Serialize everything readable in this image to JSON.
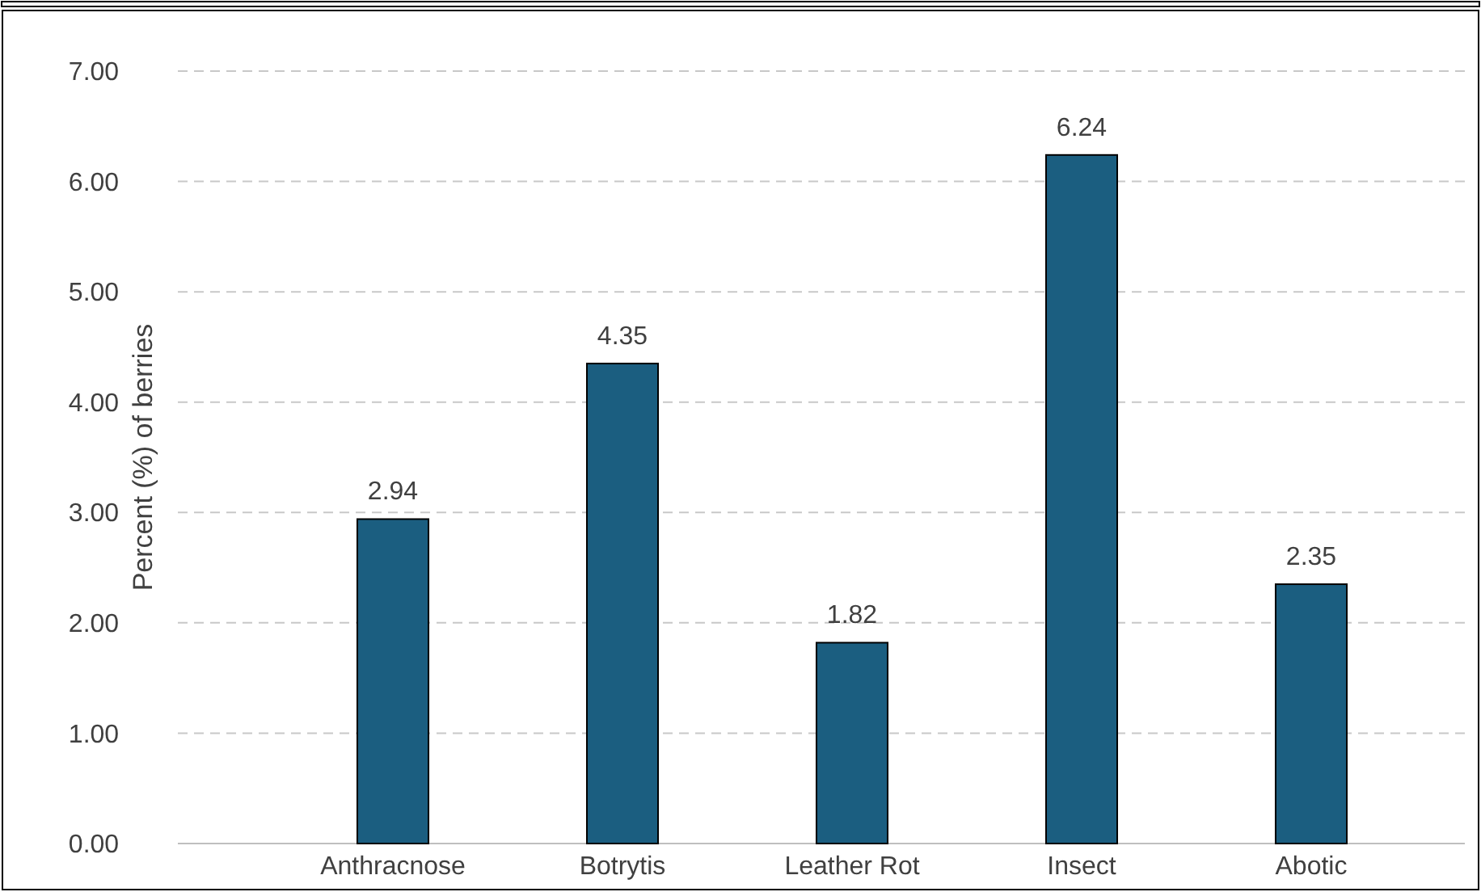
{
  "chart_data": {
    "type": "bar",
    "ylabel": "Percent (%) of berries",
    "categories": [
      "Anthracnose",
      "Botrytis",
      "Leather Rot",
      "Insect",
      "Abotic"
    ],
    "values": [
      2.94,
      4.35,
      1.82,
      6.24,
      2.35
    ],
    "color": "#1b5e80",
    "ylim": [
      0,
      7
    ],
    "yticks": [
      {
        "value": 0,
        "label": "0.00"
      },
      {
        "value": 1,
        "label": "1.00"
      },
      {
        "value": 2,
        "label": "2.00"
      },
      {
        "value": 3,
        "label": "3.00"
      },
      {
        "value": 4,
        "label": "4.00"
      },
      {
        "value": 5,
        "label": "5.00"
      },
      {
        "value": 6,
        "label": "6.00"
      },
      {
        "value": 7,
        "label": "7.00"
      }
    ],
    "grid": "y",
    "data_labels": true
  }
}
